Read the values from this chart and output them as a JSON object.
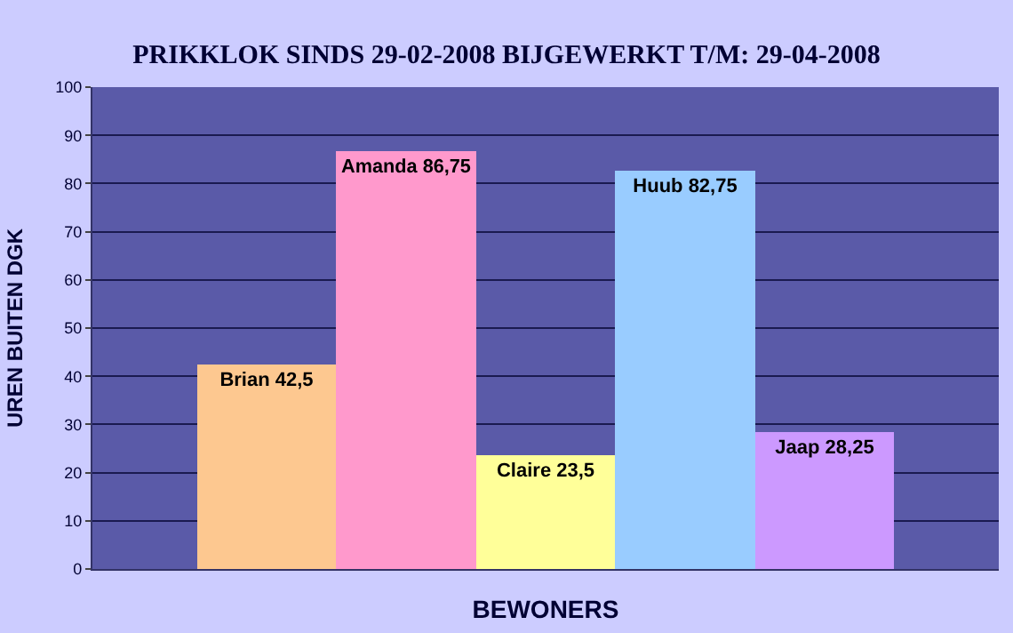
{
  "chart_data": {
    "type": "bar",
    "title": "PRIKKLOK SINDS 29-02-2008 BIJGEWERKT T/M: 29-04-2008",
    "xlabel": "BEWONERS",
    "ylabel": "UREN BUITEN DGK",
    "categories": [
      null,
      null,
      null,
      null,
      null
    ],
    "values": [
      42.5,
      86.75,
      23.5,
      82.75,
      28.25
    ],
    "value_labels": [
      "Brian 42,5",
      "Amanda 86,75",
      "Claire 23,5",
      "Huub 82,75",
      "Jaap 28,25"
    ],
    "colors": [
      "#fdc890",
      "#ff99cc",
      "#ffff99",
      "#99ccff",
      "#cc99ff"
    ],
    "ylim": [
      0,
      100
    ],
    "yticks": [
      0,
      10,
      20,
      30,
      40,
      50,
      60,
      70,
      80,
      90,
      100
    ],
    "grid": "y"
  }
}
